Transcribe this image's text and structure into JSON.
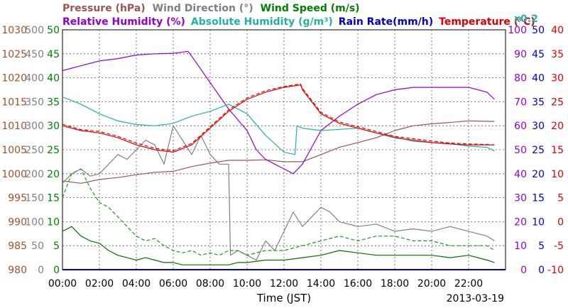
{
  "chart_data": {
    "type": "line",
    "date": "2013-03-19",
    "xlabel": "Time (JST)",
    "x_ticks": [
      "00:00",
      "02:00",
      "04:00",
      "06:00",
      "08:00",
      "10:00",
      "12:00",
      "14:00",
      "16:00",
      "18:00",
      "20:00",
      "22:00"
    ],
    "xlim": [
      0,
      24
    ],
    "grid": true,
    "legend": {
      "pressure": "Pressure (hPa)",
      "wind_direction": "Wind Direction (°)",
      "wind_speed": "Wind Speed (m/s)",
      "relative_humidity": "Relative Humidity (%)",
      "absolute_humidity": "Absolute Humidity (g/m³)",
      "abs_humidity_scale": "x0.2",
      "rain_rate": "Rain Rate(mm/h)",
      "temperature": "Temperature (°C)"
    },
    "axes": {
      "pressure": {
        "ticks": [
          "980",
          "985",
          "990",
          "995",
          "1000",
          "1005",
          "1010",
          "1015",
          "1020",
          "1025",
          "1030"
        ],
        "ylim": [
          980,
          1030
        ],
        "color": "#a0522d"
      },
      "wind_direction": {
        "ticks": [
          "0",
          "50",
          "100",
          "150",
          "200",
          "250",
          "300",
          "350",
          "400",
          "450",
          "500"
        ],
        "ylim": [
          0,
          500
        ],
        "color": "#808080"
      },
      "wind_speed": {
        "ticks": [
          "0",
          "5",
          "10",
          "15",
          "20",
          "25",
          "30",
          "35",
          "40",
          "45",
          "50"
        ],
        "ylim": [
          0,
          50
        ],
        "color": "#008000"
      },
      "relative_humidity": {
        "ticks": [
          "0",
          "10",
          "20",
          "30",
          "40",
          "50",
          "60",
          "70",
          "80",
          "90",
          "100"
        ],
        "ylim": [
          0,
          100
        ],
        "color": "#9400d3"
      },
      "rain_rate": {
        "ticks": [
          "0",
          "5",
          "10",
          "15",
          "20",
          "25",
          "30",
          "35",
          "40",
          "45",
          "50"
        ],
        "ylim": [
          0,
          50
        ],
        "color": "#0000cd"
      },
      "temperature": {
        "ticks": [
          "-10",
          "-5",
          "0",
          "5",
          "10",
          "15",
          "20",
          "25",
          "30",
          "35",
          "40"
        ],
        "ylim": [
          -10,
          40
        ],
        "color": "#e00000"
      }
    },
    "series": [
      {
        "name": "Pressure (hPa)",
        "color": "#9a5555",
        "x": [
          0,
          1,
          2,
          3,
          4,
          5,
          6,
          7,
          8,
          9,
          10,
          11,
          12,
          13,
          14,
          15,
          16,
          17,
          18,
          19,
          20,
          21,
          22,
          23.4
        ],
        "values": [
          998.5,
          998,
          998.8,
          999.2,
          999.8,
          1000.3,
          1000.5,
          1001.5,
          1002.2,
          1002.8,
          1002.8,
          1002.9,
          1002.5,
          1002.5,
          1004,
          1005.5,
          1006.5,
          1007.5,
          1009,
          1010,
          1010.4,
          1010.7,
          1011,
          1010.9
        ]
      },
      {
        "name": "Wind Direction (°)",
        "color": "#808080",
        "x": [
          0,
          0.5,
          1,
          1.5,
          2,
          2.5,
          3,
          3.5,
          4,
          4.5,
          5,
          5.5,
          6,
          6.5,
          7,
          7.5,
          8,
          8.5,
          9,
          9.1,
          9.5,
          10,
          10.5,
          11,
          11.5,
          12,
          12.5,
          13,
          13.5,
          14,
          14.5,
          15,
          16,
          17,
          18,
          19,
          20,
          21,
          22,
          23,
          23.4
        ],
        "values": [
          180,
          200,
          210,
          195,
          200,
          220,
          240,
          230,
          250,
          270,
          260,
          220,
          300,
          270,
          240,
          280,
          240,
          220,
          220,
          30,
          40,
          30,
          20,
          60,
          40,
          80,
          120,
          90,
          110,
          130,
          120,
          100,
          90,
          95,
          80,
          85,
          80,
          90,
          80,
          70,
          60
        ]
      },
      {
        "name": "Wind Speed (m/s) max",
        "color": "#1a9a1a",
        "dashed": true,
        "x": [
          0,
          0.5,
          1,
          1.5,
          2,
          2.5,
          3,
          3.5,
          4,
          4.5,
          5,
          5.5,
          6,
          6.5,
          7,
          7.5,
          8,
          8.5,
          9,
          9.5,
          10,
          11,
          12,
          13,
          14,
          15,
          16,
          17,
          18,
          19,
          20,
          21,
          22,
          23,
          23.4
        ],
        "values": [
          15,
          20,
          21,
          17,
          14,
          13,
          11,
          9,
          7,
          6,
          6.5,
          5,
          4,
          3.5,
          4,
          3,
          3.5,
          3,
          4,
          4,
          3,
          4,
          4,
          5,
          6,
          7,
          6,
          7,
          7,
          6,
          6,
          5,
          5,
          5,
          4
        ]
      },
      {
        "name": "Wind Speed (m/s) avg",
        "color": "#007000",
        "x": [
          0,
          0.5,
          1,
          1.5,
          2,
          2.5,
          3,
          3.5,
          4,
          4.5,
          5,
          5.5,
          6,
          6.5,
          7,
          7.5,
          8,
          8.5,
          9,
          9.5,
          10,
          11,
          12,
          13,
          14,
          15,
          16,
          17,
          18,
          19,
          20,
          21,
          22,
          23,
          23.4
        ],
        "values": [
          8,
          9,
          7,
          6,
          5.5,
          4,
          3,
          2.5,
          2,
          2.5,
          2,
          1.5,
          1.5,
          1,
          1,
          1,
          1,
          1,
          1,
          1.5,
          1.5,
          2,
          2,
          2.5,
          3,
          4,
          3.5,
          3,
          3,
          3,
          3,
          2.5,
          3,
          2,
          1.5
        ]
      },
      {
        "name": "Relative Humidity (%)",
        "color": "#9400d3",
        "x": [
          0,
          1,
          2,
          3,
          4,
          5,
          6,
          6.8,
          7,
          8,
          9,
          10,
          10.5,
          11,
          11.5,
          12,
          12.5,
          13,
          14,
          15,
          16,
          17,
          18,
          19,
          20,
          21,
          22,
          23,
          23.4
        ],
        "values": [
          83,
          85,
          87,
          88,
          89.5,
          90,
          90.2,
          91,
          89,
          78,
          67,
          58,
          50,
          46,
          44,
          42,
          40,
          44,
          58,
          64,
          69,
          73,
          75,
          76,
          76,
          76,
          76,
          74,
          71
        ]
      },
      {
        "name": "Absolute Humidity (g/m³)",
        "color": "#20b2aa",
        "x": [
          0,
          1,
          2,
          3,
          4,
          5,
          6,
          7,
          8,
          9,
          10,
          11,
          12,
          12.6,
          12.7,
          13,
          14,
          15,
          16,
          17,
          18,
          19,
          20,
          21,
          22,
          23,
          23.4
        ],
        "values": [
          72,
          69,
          65,
          62,
          60.5,
          60,
          61,
          64,
          66,
          69,
          65,
          56,
          49,
          48,
          60,
          59,
          58,
          58.5,
          59,
          57,
          55.5,
          53.5,
          53,
          52.5,
          51.5,
          51,
          49.5
        ]
      },
      {
        "name": "Temperature (°C) thin",
        "color": "#e00000",
        "x": [
          0,
          1,
          2,
          3,
          4,
          5,
          6,
          7,
          8,
          9,
          10,
          11,
          12,
          12.9,
          13,
          14,
          15,
          16,
          17,
          18,
          19,
          20,
          21,
          22,
          23,
          23.4
        ],
        "values": [
          20,
          19,
          18.5,
          17.5,
          16,
          15,
          14.5,
          16,
          19.5,
          23,
          25.5,
          27,
          28,
          28.5,
          27.5,
          22.5,
          20.5,
          19.5,
          18.5,
          17.5,
          17,
          16.5,
          16.2,
          16,
          16,
          16
        ]
      },
      {
        "name": "Temperature (°C) dashed",
        "color": "#e00000",
        "dashed": true,
        "x": [
          0,
          1,
          2,
          3,
          4,
          5,
          6,
          7,
          8,
          9,
          10,
          11,
          12,
          12.9,
          13,
          14,
          15,
          16,
          17,
          18,
          19,
          20,
          21,
          22,
          23,
          23.4
        ],
        "values": [
          20.3,
          19.2,
          18.8,
          17.8,
          16.4,
          15.3,
          14.8,
          16.3,
          19.8,
          23.3,
          25.8,
          27.3,
          28.2,
          28.7,
          27.8,
          22.8,
          20.8,
          19.8,
          18.8,
          17.8,
          17.3,
          16.8,
          16.4,
          16.2,
          16.1,
          16
        ]
      },
      {
        "name": "Rain Rate(mm/h)",
        "color": "#0000cd",
        "x": [
          0,
          24
        ],
        "values": [
          0,
          0
        ]
      }
    ]
  }
}
